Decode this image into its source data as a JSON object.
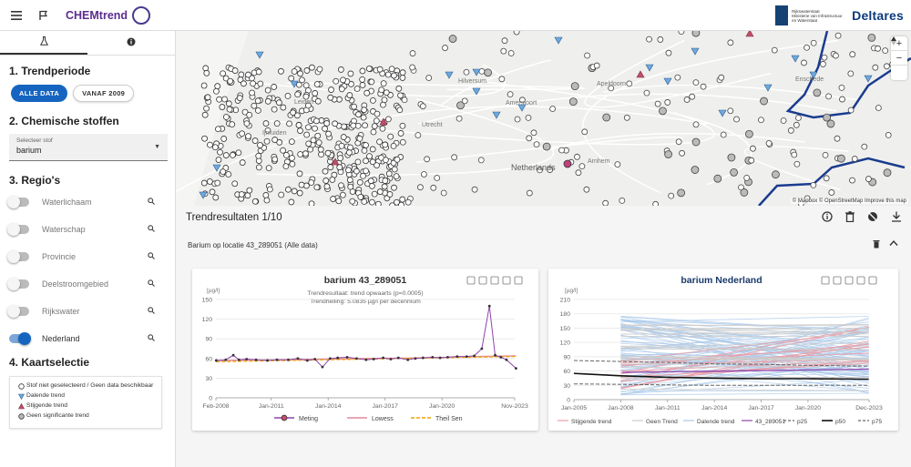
{
  "header": {
    "app_name": "CHEMtrend",
    "partner1_text": [
      "Rijkswaterstaat",
      "Ministerie van Infrastructuur",
      "en Waterstaat"
    ],
    "partner2": "Deltares",
    "icons": [
      "menu-icon",
      "flag-icon",
      "chemtrend-logo"
    ]
  },
  "sidebar": {
    "tabs": [
      {
        "icon": "flask-icon"
      },
      {
        "icon": "info-icon"
      }
    ],
    "section1_title": "1. Trendperiode",
    "period_options": [
      "ALLE DATA",
      "VANAF 2009"
    ],
    "period_selected": "ALLE DATA",
    "section2_title": "2. Chemische stoffen",
    "select_label": "Selecteer stof",
    "select_value": "barium",
    "section3_title": "3. Regio's",
    "regions": [
      {
        "label": "Waterlichaam",
        "on": false
      },
      {
        "label": "Waterschap",
        "on": false
      },
      {
        "label": "Provincie",
        "on": false
      },
      {
        "label": "Deelstroomgebied",
        "on": false
      },
      {
        "label": "Rijkswater",
        "on": false
      },
      {
        "label": "Nederland",
        "on": true
      }
    ],
    "section4_title": "4. Kaartselectie",
    "legend": [
      {
        "symbol": "open-circle",
        "label": "Stof niet geselecteerd / Geen data beschikbaar"
      },
      {
        "symbol": "blue-triangle-down",
        "label": "Dalende trend"
      },
      {
        "symbol": "red-triangle-up",
        "label": "Stijgende trend"
      },
      {
        "symbol": "grey-circle",
        "label": "Geen significante trend"
      }
    ]
  },
  "map": {
    "labels": [
      "Ijmuiden",
      "Hilversum",
      "Amersfoort",
      "Apeldoorn",
      "Leiden",
      "Netherlands",
      "Arnhem",
      "Enschede",
      "Utrecht"
    ],
    "attribution": "© Mapbox © OpenStreetMap  Improve this map",
    "zoom_in": "+",
    "zoom_out": "−",
    "colors": {
      "decreasing": "#6fa8dc",
      "increasing": "#c0506a",
      "border": "#1a3c8f"
    }
  },
  "results": {
    "title": "Trendresultaten 1/10",
    "subtitle": "Barium op locatie 43_289051 (Alle data)",
    "icons": [
      "info-icon",
      "trash-icon",
      "globe-off-icon",
      "download-icon"
    ]
  },
  "chart_data": [
    {
      "type": "line",
      "title": "barium 43_289051",
      "subtitle_lines": [
        "Trendresultaat: trend opwaarts (p=0.0005)",
        "Trendhelling: 5.0835 µg/l per decennium"
      ],
      "ylabel": "[µg/l]",
      "ylim": [
        0,
        150
      ],
      "yticks": [
        0,
        30,
        60,
        90,
        120,
        150
      ],
      "xticks": [
        "Feb-2008",
        "Jan-2011",
        "Jan-2014",
        "Jan-2017",
        "Jan-2020",
        "Nov-2023"
      ],
      "legend": [
        "Meting",
        "Lowess",
        "Theil Sen"
      ],
      "colors": {
        "Meting": "#8e44ad",
        "Lowess": "#e08a9a",
        "Theil Sen": "#f0a500"
      },
      "series": [
        {
          "name": "Meting",
          "x": [
            2008.1,
            2008.6,
            2009.0,
            2009.3,
            2009.7,
            2010.2,
            2010.8,
            2011.3,
            2011.9,
            2012.4,
            2012.9,
            2013.3,
            2013.7,
            2014.1,
            2014.5,
            2015.0,
            2015.5,
            2016.0,
            2016.4,
            2016.9,
            2017.3,
            2017.7,
            2018.2,
            2018.6,
            2019.0,
            2019.5,
            2019.9,
            2020.3,
            2020.8,
            2021.3,
            2021.7,
            2022.1,
            2022.5,
            2022.8,
            2023.1,
            2023.4,
            2023.9
          ],
          "y": [
            57,
            58,
            65,
            58,
            59,
            58,
            57,
            58,
            58,
            60,
            57,
            59,
            47,
            60,
            61,
            62,
            60,
            58,
            59,
            61,
            59,
            61,
            58,
            60,
            61,
            62,
            61,
            62,
            63,
            63,
            64,
            75,
            140,
            65,
            62,
            58,
            45
          ]
        },
        {
          "name": "Lowess",
          "x": [
            2008.1,
            2010,
            2012,
            2014,
            2016,
            2018,
            2020,
            2022,
            2023.9
          ],
          "y": [
            57,
            57.5,
            58,
            59,
            60,
            60.5,
            61.5,
            63,
            64
          ]
        },
        {
          "name": "Theil Sen",
          "x": [
            2008.1,
            2023.9
          ],
          "y": [
            55,
            63
          ]
        }
      ]
    },
    {
      "type": "line",
      "title": "barium Nederland",
      "ylabel": "[µg/l]",
      "ylim": [
        0,
        210
      ],
      "yticks": [
        0,
        30,
        60,
        90,
        120,
        150,
        180,
        210
      ],
      "xticks": [
        "Jan-2005",
        "Jan-2008",
        "Jan-2011",
        "Jan-2014",
        "Jan-2017",
        "Jan-2020",
        "Dec-2023"
      ],
      "legend": [
        "Stijgende trend",
        "Geen Trend",
        "Dalende trend",
        "43_289051",
        "p25",
        "p50",
        "p75"
      ],
      "colors": {
        "Stijgende trend": "#e8a0aa",
        "Geen Trend": "#cccccc",
        "Dalende trend": "#a9c9ea",
        "43_289051": "#8e44ad",
        "p25": "#666666",
        "p50": "#111111",
        "p75": "#666666"
      },
      "series": [
        {
          "name": "p75",
          "x": [
            2005,
            2008,
            2011,
            2014,
            2017,
            2020,
            2023.9
          ],
          "y": [
            82,
            80,
            78,
            75,
            74,
            72,
            70
          ]
        },
        {
          "name": "p50",
          "x": [
            2005,
            2008,
            2011,
            2014,
            2017,
            2020,
            2023.9
          ],
          "y": [
            55,
            50,
            47,
            45,
            44,
            44,
            43
          ]
        },
        {
          "name": "p25",
          "x": [
            2005,
            2008,
            2011,
            2014,
            2017,
            2020,
            2023.9
          ],
          "y": [
            33,
            32,
            31,
            30,
            30,
            30,
            30
          ]
        },
        {
          "name": "43_289051",
          "x": [
            2008.1,
            2023.9
          ],
          "y": [
            57,
            64
          ]
        },
        {
          "name": "Stijgende trend",
          "x": [
            2008,
            2023.9
          ],
          "y": [
            95,
            157
          ]
        },
        {
          "name": "Dalende trend",
          "x": [
            2008,
            2023.9
          ],
          "y": [
            180,
            120
          ]
        }
      ]
    }
  ]
}
